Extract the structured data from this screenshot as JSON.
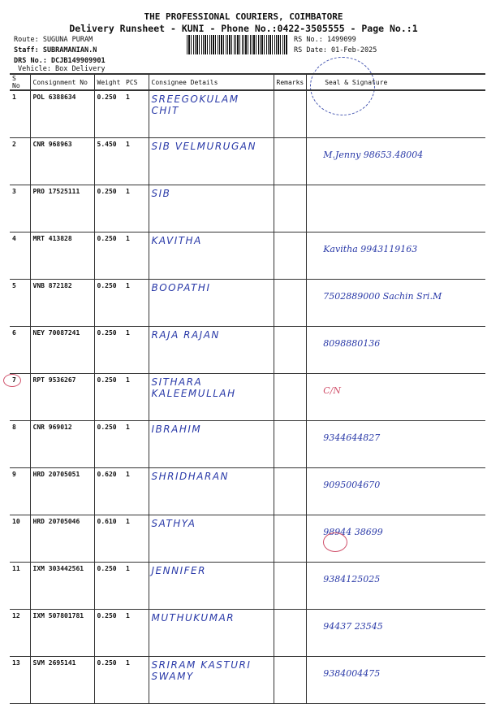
{
  "header": {
    "company": "THE PROFESSIONAL COURIERS, COIMBATORE",
    "subtitle": "Delivery Runsheet - KUNI - Phone No.:0422-3505555 - Page No.:1",
    "route": "Route: SUGUNA PURAM",
    "staff": "Staff: SUBRAMANIAN.N",
    "drs": "DRS No.: DCJB149909901",
    "vehicle": "Vehicle: Box Delivery",
    "rs_no": "RS No.: 1499099",
    "rs_date": "RS Date: 01-Feb-2025"
  },
  "columns": [
    "S No",
    "Consignment No",
    "Weight",
    "PCS",
    "Consignee Details",
    "Remarks",
    "Seal & Signature"
  ],
  "rows": [
    {
      "sno": "1",
      "cn": "POL 6388634",
      "weight": "0.250",
      "pcs": "1",
      "consignee": "SREEGOKULAM CHIT",
      "sig": ""
    },
    {
      "sno": "2",
      "cn": "CNR 968963",
      "weight": "5.450",
      "pcs": "1",
      "consignee": "SIB VELMURUGAN",
      "sig": "M.Jenny 98653.48004"
    },
    {
      "sno": "3",
      "cn": "PRO 17525111",
      "weight": "0.250",
      "pcs": "1",
      "consignee": "SIB",
      "sig": ""
    },
    {
      "sno": "4",
      "cn": "MRT 413828",
      "weight": "0.250",
      "pcs": "1",
      "consignee": "KAVITHA",
      "sig": "Kavitha 9943119163"
    },
    {
      "sno": "5",
      "cn": "VNB 872182",
      "weight": "0.250",
      "pcs": "1",
      "consignee": "BOOPATHI",
      "sig": "7502889000 Sachin Sri.M"
    },
    {
      "sno": "6",
      "cn": "NEY 70087241",
      "weight": "0.250",
      "pcs": "1",
      "consignee": "RAJA RAJAN",
      "sig": "8098880136"
    },
    {
      "sno": "7",
      "cn": "RPT 9536267",
      "weight": "0.250",
      "pcs": "1",
      "consignee": "SITHARA KALEEMULLAH",
      "sig": "C/N"
    },
    {
      "sno": "8",
      "cn": "CNR 969012",
      "weight": "0.250",
      "pcs": "1",
      "consignee": "IBRAHIM",
      "sig": "9344644827"
    },
    {
      "sno": "9",
      "cn": "HRD 20705051",
      "weight": "0.620",
      "pcs": "1",
      "consignee": "SHRIDHARAN",
      "sig": "9095004670"
    },
    {
      "sno": "10",
      "cn": "HRD 20705046",
      "weight": "0.610",
      "pcs": "1",
      "consignee": "SATHYA",
      "sig": "98944 38699"
    },
    {
      "sno": "11",
      "cn": "IXM 303442561",
      "weight": "0.250",
      "pcs": "1",
      "consignee": "JENNIFER",
      "sig": "9384125025"
    },
    {
      "sno": "12",
      "cn": "IXM 507801781",
      "weight": "0.250",
      "pcs": "1",
      "consignee": "MUTHUKUMAR",
      "sig": "94437 23545"
    },
    {
      "sno": "13",
      "cn": "SVM 2695141",
      "weight": "0.250",
      "pcs": "1",
      "consignee": "SRIRAM KASTURI SWAMY",
      "sig": "9384004475"
    }
  ],
  "colors": {
    "ink": "#2a3aa8",
    "red_pen": "#d0506a"
  }
}
